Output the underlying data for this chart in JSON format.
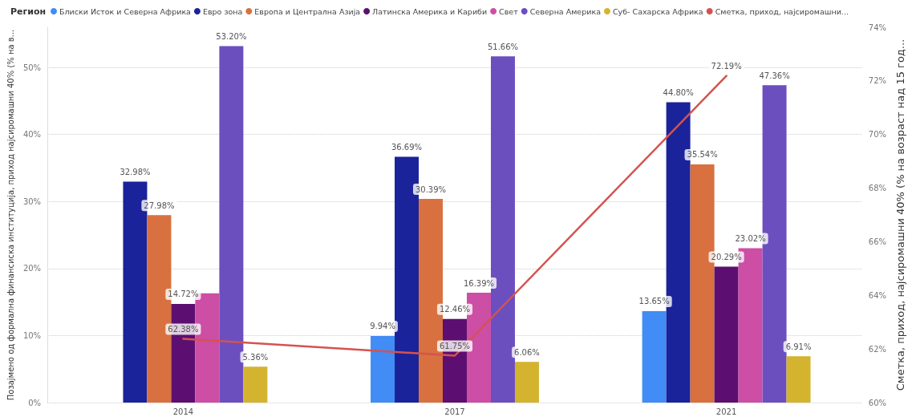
{
  "chart_data": {
    "type": "bar",
    "legend_title": "Регион",
    "ylabel": "Позајмено од формална финансиска институција, приход најсиромашни 40% (% на в...",
    "y2label": "Сметка, приход, најсиромашни 40% (% на возраст над 15 год...",
    "categories": [
      "2014",
      "2017",
      "2021"
    ],
    "series": [
      {
        "name": "Блиски Исток и Северна Африка",
        "color": "#418cf5",
        "values": [
          null,
          9.94,
          13.65
        ],
        "value_labels": [
          null,
          "9.94%",
          "13.65%"
        ]
      },
      {
        "name": "Евро зона",
        "color": "#1a239a",
        "values": [
          32.98,
          36.69,
          44.8
        ],
        "value_labels": [
          "32.98%",
          "36.69%",
          "44.80%"
        ]
      },
      {
        "name": "Европа и Централна Азија",
        "color": "#d8713f",
        "values": [
          27.98,
          30.39,
          35.54
        ],
        "value_labels": [
          "27.98%",
          "30.39%",
          "35.54%"
        ]
      },
      {
        "name": "Латинска Америка и Кариби",
        "color": "#5c0f70",
        "values": [
          14.72,
          12.46,
          20.29
        ],
        "value_labels": [
          "14.72%",
          "12.46%",
          "20.29%"
        ]
      },
      {
        "name": "Свет",
        "color": "#cc4ea5",
        "values": [
          16.3,
          16.39,
          23.02
        ],
        "value_labels": [
          null,
          "16.39%",
          "23.02%"
        ]
      },
      {
        "name": "Северна Америка",
        "color": "#6c4fbf",
        "values": [
          53.2,
          51.66,
          47.36
        ],
        "value_labels": [
          "53.20%",
          "51.66%",
          "47.36%"
        ]
      },
      {
        "name": "Суб- Сахарска Африка",
        "color": "#d4b32f",
        "values": [
          5.36,
          6.06,
          6.91
        ],
        "value_labels": [
          "5.36%",
          "6.06%",
          "6.91%"
        ]
      },
      {
        "name": "Сметка, приход, најсиромашни...",
        "type": "line",
        "axis": "y2",
        "color": "#d4534f",
        "values": [
          62.38,
          61.75,
          72.19
        ],
        "value_labels": [
          "62.38%",
          "61.75%",
          "72.19%"
        ]
      }
    ],
    "ylim": [
      0,
      56
    ],
    "yticks": [
      {
        "value": 0,
        "label": "0%"
      },
      {
        "value": 10,
        "label": "10%"
      },
      {
        "value": 20,
        "label": "20%"
      },
      {
        "value": 30,
        "label": "30%"
      },
      {
        "value": 40,
        "label": "40%"
      },
      {
        "value": 50,
        "label": "50%"
      }
    ],
    "y2lim": [
      60,
      74
    ],
    "y2ticks": [
      {
        "value": 60,
        "label": "60%"
      },
      {
        "value": 62,
        "label": "62%"
      },
      {
        "value": 64,
        "label": "64%"
      },
      {
        "value": 66,
        "label": "66%"
      },
      {
        "value": 68,
        "label": "68%"
      },
      {
        "value": 70,
        "label": "70%"
      },
      {
        "value": 72,
        "label": "72%"
      },
      {
        "value": 74,
        "label": "74%"
      }
    ],
    "grid": "y",
    "legend": "top left",
    "marker": "none",
    "line_style": "solid"
  }
}
